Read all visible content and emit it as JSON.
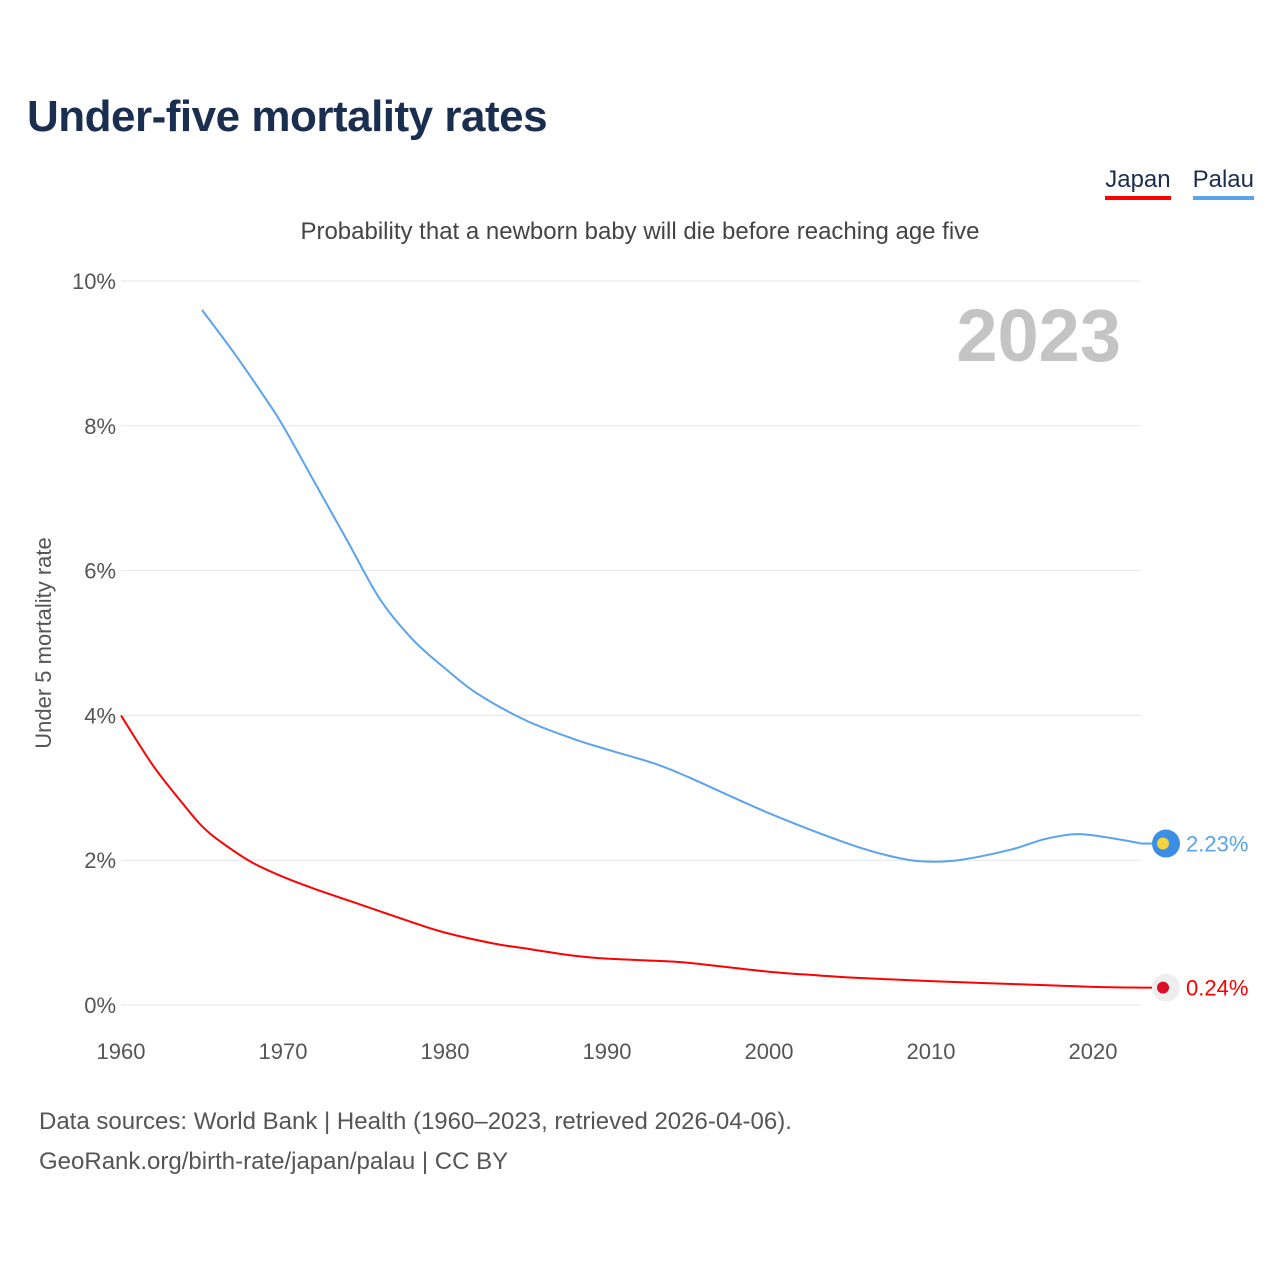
{
  "header": {
    "title": "Under-five mortality rates"
  },
  "legend": [
    {
      "label": "Japan",
      "color": "#ff0000"
    },
    {
      "label": "Palau",
      "color": "#5ba3ec"
    }
  ],
  "footer": {
    "line1": "Data sources: World Bank | Health (1960–2023, retrieved 2026-04-06).",
    "line2": "GeoRank.org/birth-rate/japan/palau | CC BY"
  },
  "chart_data": {
    "type": "line",
    "title": "Under-five mortality rates",
    "subtitle": "Probability that a newborn baby will die before reaching age five",
    "ylabel": "Under 5 mortality rate",
    "xlabel": "",
    "year_label": "2023",
    "ylim": [
      0,
      10
    ],
    "xlim": [
      1960,
      2023
    ],
    "yticks": [
      "0%",
      "2%",
      "4%",
      "6%",
      "8%",
      "10%"
    ],
    "ytick_values": [
      0,
      2,
      4,
      6,
      8,
      10
    ],
    "xticks": [
      "1960",
      "1970",
      "1980",
      "1990",
      "2000",
      "2010",
      "2020"
    ],
    "xtick_values": [
      1960,
      1970,
      1980,
      1990,
      2000,
      2010,
      2020
    ],
    "grid": true,
    "legend_placement": "top-right",
    "series": [
      {
        "name": "Japan",
        "color": "#ff0000",
        "end_label": "0.24%",
        "x": [
          1960,
          1962,
          1964,
          1965,
          1966,
          1968,
          1970,
          1972,
          1975,
          1978,
          1980,
          1983,
          1985,
          1988,
          1990,
          1994,
          1996,
          2000,
          2003,
          2005,
          2010,
          2015,
          2020,
          2023
        ],
        "values": [
          4.0,
          3.3,
          2.73,
          2.47,
          2.28,
          1.98,
          1.77,
          1.6,
          1.37,
          1.14,
          1.0,
          0.85,
          0.78,
          0.68,
          0.64,
          0.6,
          0.56,
          0.46,
          0.41,
          0.38,
          0.33,
          0.29,
          0.25,
          0.24
        ]
      },
      {
        "name": "Palau",
        "color": "#5ba3ec",
        "end_label": "2.23%",
        "x": [
          1965,
          1967,
          1969,
          1970,
          1972,
          1974,
          1976,
          1978,
          1980,
          1982,
          1985,
          1988,
          1990,
          1993,
          1995,
          2000,
          2005,
          2008,
          2010,
          2012,
          2015,
          2017,
          2019,
          2021,
          2023
        ],
        "values": [
          9.6,
          9.0,
          8.35,
          8.0,
          7.2,
          6.4,
          5.6,
          5.05,
          4.65,
          4.3,
          3.93,
          3.67,
          3.53,
          3.33,
          3.15,
          2.65,
          2.22,
          2.03,
          1.98,
          2.01,
          2.15,
          2.29,
          2.36,
          2.31,
          2.23
        ]
      }
    ]
  }
}
